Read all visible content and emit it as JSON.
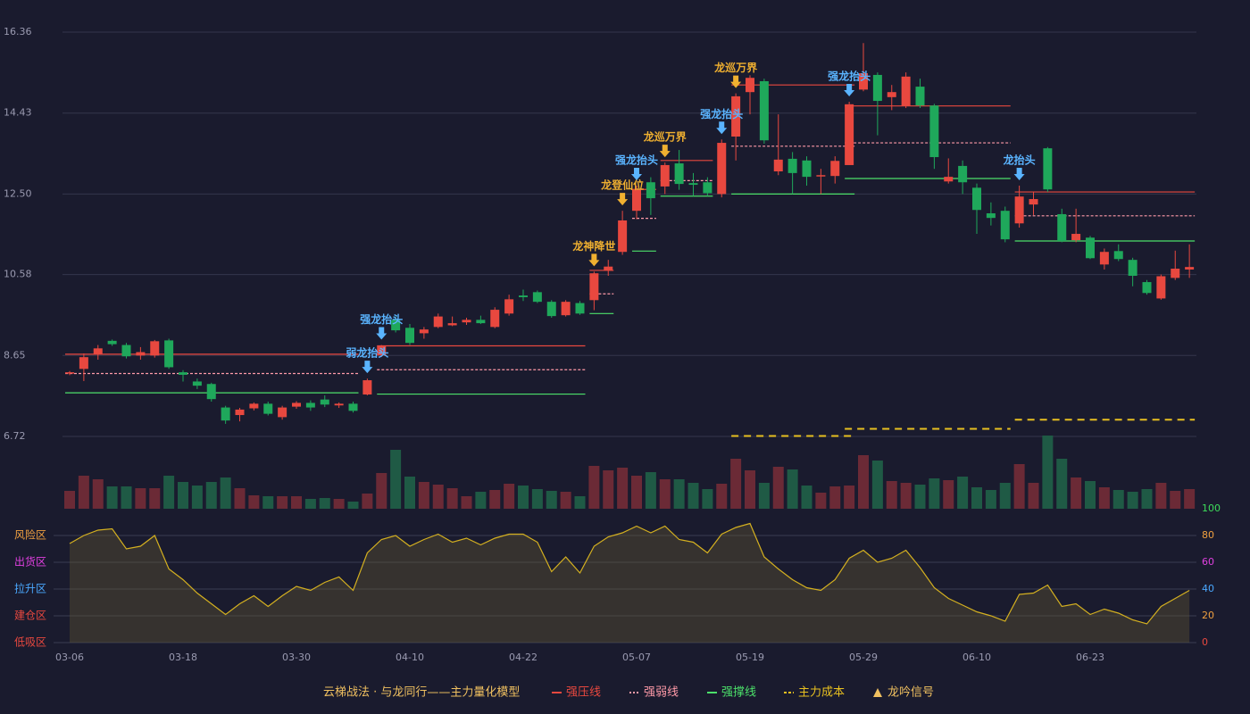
{
  "chart_data": {
    "type": "candlestick",
    "categories": [
      "03-06",
      null,
      null,
      null,
      null,
      null,
      null,
      null,
      "03-18",
      null,
      null,
      null,
      null,
      null,
      null,
      null,
      "03-30",
      null,
      null,
      null,
      null,
      null,
      null,
      null,
      "04-10",
      null,
      null,
      null,
      null,
      null,
      null,
      null,
      "04-22",
      null,
      null,
      null,
      null,
      null,
      null,
      null,
      "05-07",
      null,
      null,
      null,
      null,
      null,
      null,
      null,
      "05-19",
      null,
      null,
      null,
      null,
      null,
      null,
      null,
      "05-29",
      null,
      null,
      null,
      null,
      null,
      null,
      null,
      "06-10",
      null,
      null,
      null,
      null,
      null,
      null,
      null,
      "06-23",
      null,
      null,
      null,
      null,
      null,
      null,
      null
    ],
    "open": [
      8.22,
      8.33,
      8.67,
      9.0,
      8.9,
      8.65,
      8.65,
      9.01,
      8.25,
      8.03,
      7.97,
      7.41,
      7.23,
      7.39,
      7.5,
      7.18,
      7.43,
      7.52,
      7.6,
      7.46,
      7.5,
      7.72,
      8.65,
      9.5,
      9.31,
      9.18,
      9.33,
      9.37,
      9.44,
      9.5,
      9.33,
      9.65,
      10.08,
      10.16,
      9.93,
      9.61,
      9.9,
      9.97,
      10.68,
      11.12,
      12.1,
      12.78,
      12.68,
      13.23,
      12.76,
      12.78,
      12.5,
      13.87,
      14.93,
      15.19,
      13.04,
      13.34,
      13.3,
      12.93,
      12.93,
      13.19,
      14.99,
      15.34,
      14.81,
      14.6,
      15.06,
      14.61,
      12.8,
      13.17,
      12.65,
      12.04,
      12.1,
      11.8,
      12.25,
      13.59,
      12.02,
      11.4,
      11.46,
      10.82,
      11.14,
      10.93,
      10.4,
      10.01,
      10.5,
      10.7
    ],
    "high": [
      8.28,
      8.7,
      8.9,
      9.03,
      8.95,
      8.85,
      9.02,
      9.05,
      8.3,
      8.1,
      8.0,
      7.45,
      7.4,
      7.53,
      7.55,
      7.45,
      7.56,
      7.58,
      7.7,
      7.53,
      7.55,
      8.1,
      8.9,
      9.58,
      9.4,
      9.33,
      9.65,
      9.58,
      9.55,
      9.6,
      9.8,
      10.1,
      10.22,
      10.2,
      9.97,
      9.97,
      9.95,
      10.65,
      10.93,
      12.1,
      12.7,
      12.9,
      13.25,
      13.55,
      13.0,
      12.9,
      13.8,
      14.9,
      15.33,
      15.25,
      14.4,
      13.5,
      13.4,
      13.1,
      13.4,
      14.7,
      16.1,
      15.4,
      15.1,
      15.4,
      15.25,
      14.65,
      13.35,
      13.3,
      12.75,
      12.3,
      12.2,
      12.7,
      12.55,
      13.62,
      12.15,
      12.15,
      11.5,
      11.2,
      11.3,
      10.98,
      10.45,
      10.58,
      11.15,
      11.3
    ],
    "low": [
      8.18,
      8.04,
      8.55,
      8.88,
      8.58,
      8.55,
      8.6,
      8.33,
      8.03,
      7.85,
      7.55,
      7.02,
      7.08,
      7.34,
      7.22,
      7.12,
      7.38,
      7.33,
      7.42,
      7.4,
      7.29,
      7.7,
      8.62,
      9.2,
      8.9,
      9.05,
      9.3,
      9.35,
      9.38,
      9.4,
      9.3,
      9.6,
      9.95,
      9.9,
      9.55,
      9.58,
      9.62,
      9.73,
      10.55,
      11.05,
      11.9,
      12.0,
      12.5,
      12.6,
      12.45,
      12.45,
      12.42,
      13.3,
      14.4,
      13.7,
      12.95,
      12.5,
      12.7,
      12.5,
      12.75,
      13.19,
      14.95,
      13.9,
      14.5,
      14.55,
      14.55,
      13.1,
      12.75,
      12.5,
      11.55,
      11.75,
      11.35,
      11.7,
      12.0,
      12.55,
      11.35,
      11.35,
      10.95,
      10.7,
      10.9,
      10.3,
      10.1,
      9.98,
      10.45,
      10.5
    ],
    "close": [
      8.25,
      8.61,
      8.82,
      8.92,
      8.63,
      8.73,
      8.99,
      8.37,
      8.19,
      7.93,
      7.61,
      7.1,
      7.36,
      7.5,
      7.26,
      7.41,
      7.52,
      7.41,
      7.48,
      7.5,
      7.33,
      8.06,
      8.87,
      9.25,
      8.95,
      9.27,
      9.58,
      9.42,
      9.5,
      9.42,
      9.74,
      9.99,
      10.04,
      9.93,
      9.59,
      9.93,
      9.65,
      10.61,
      10.77,
      11.87,
      12.61,
      12.4,
      13.19,
      12.74,
      12.72,
      12.52,
      13.72,
      14.83,
      15.27,
      13.78,
      13.32,
      13.0,
      12.91,
      12.95,
      13.29,
      14.64,
      15.38,
      14.72,
      14.93,
      15.3,
      14.61,
      13.38,
      12.91,
      12.78,
      12.12,
      11.93,
      11.42,
      12.44,
      12.38,
      12.61,
      11.38,
      11.55,
      10.97,
      11.12,
      10.95,
      10.55,
      10.14,
      10.54,
      10.72,
      10.76
    ],
    "up_color": "#e8483f",
    "down_color": "#1fa85b",
    "ylim": [
      6.72,
      16.36
    ],
    "yticks": [
      6.72,
      8.65,
      10.58,
      {
        "value": 12.5,
        "label": "12.50"
      },
      14.43,
      16.36
    ],
    "grid": true,
    "volume": {
      "values": [
        20,
        37,
        33,
        25,
        25,
        23,
        23,
        37,
        30,
        26,
        30,
        35,
        23,
        15,
        14,
        14,
        14,
        11,
        12,
        11,
        8,
        17,
        40,
        66,
        36,
        30,
        27,
        23,
        14,
        19,
        21,
        28,
        26,
        22,
        20,
        19,
        14,
        48,
        43,
        46,
        37,
        41,
        33,
        33,
        29,
        22,
        28,
        56,
        43,
        29,
        47,
        44,
        26,
        18,
        25,
        26,
        60,
        54,
        31,
        29,
        27,
        34,
        32,
        36,
        24,
        21,
        29,
        50,
        29,
        82,
        56,
        35,
        31,
        24,
        21,
        19,
        22,
        29,
        20,
        22
      ],
      "up_color": "#6b2a36",
      "down_color": "#1f5a45"
    },
    "oscillator": {
      "values": [
        74,
        80,
        84,
        85,
        70,
        72,
        80,
        55,
        47,
        37,
        29,
        21,
        29,
        35,
        27,
        35,
        42,
        39,
        45,
        49,
        39,
        67,
        77,
        80,
        72,
        77,
        81,
        75,
        78,
        73,
        78,
        81,
        81,
        75,
        53,
        64,
        52,
        72,
        79,
        82,
        87,
        82,
        87,
        77,
        75,
        67,
        81,
        86,
        89,
        64,
        55,
        47,
        41,
        39,
        47,
        63,
        69,
        60,
        63,
        69,
        56,
        41,
        33,
        28,
        23,
        20,
        16,
        36,
        37,
        43,
        27,
        29,
        21,
        25,
        22,
        17,
        14,
        27,
        33,
        39
      ],
      "color": "#d4b020",
      "ylim": [
        0,
        100
      ],
      "yticks": [
        0,
        20,
        40,
        60,
        80,
        100
      ],
      "ytick_colors": [
        "#e8483f",
        "#f0a040",
        "#4aa8ff",
        "#e040e0",
        "#f0a040",
        "#3ddc5a"
      ],
      "zones": [
        {
          "value": 80,
          "label": "风险区",
          "color": "#f0a040"
        },
        {
          "value": 60,
          "label": "出货区",
          "color": "#e040e0"
        },
        {
          "value": 40,
          "label": "拉升区",
          "color": "#4aa8ff"
        },
        {
          "value": 20,
          "label": "建仓区",
          "color": "#e8483f"
        },
        {
          "value": 0,
          "label": "低吸区",
          "color": "#e8483f"
        }
      ]
    },
    "levels": [
      {
        "start": 0,
        "end": 20,
        "resistance": 8.68,
        "pivot": 8.22,
        "support": 7.76,
        "cost": null
      },
      {
        "start": 22,
        "end": 36,
        "resistance": 8.88,
        "pivot": 8.31,
        "support": 7.73,
        "cost": null
      },
      {
        "start": 37,
        "end": 38,
        "resistance": 10.68,
        "pivot": 10.12,
        "support": 9.65,
        "cost": null
      },
      {
        "start": 40,
        "end": 41,
        "resistance": 12.61,
        "pivot": 11.92,
        "support": 11.14,
        "cost": null
      },
      {
        "start": 42,
        "end": 45,
        "resistance": 13.3,
        "pivot": 12.82,
        "support": 12.45,
        "cost": null
      },
      {
        "start": 47,
        "end": 55,
        "resistance": 15.1,
        "pivot": 13.64,
        "support": 12.5,
        "cost": 6.73
      },
      {
        "start": 55,
        "end": 66,
        "resistance": 14.6,
        "pivot": 13.72,
        "support": 12.87,
        "cost": 6.9
      },
      {
        "start": 67,
        "end": 79,
        "resistance": 12.55,
        "pivot": 11.98,
        "support": 11.38,
        "cost": 7.12
      }
    ],
    "level_styles": {
      "resistance": "#e8483f",
      "pivot": "#ff9aa8",
      "support": "#4ce06a",
      "cost": "#e8c020"
    },
    "signals": [
      {
        "index": 21,
        "label": "弱龙抬头",
        "color": "#5ab4ff"
      },
      {
        "index": 22,
        "label": "强龙抬头",
        "color": "#5ab4ff"
      },
      {
        "index": 37,
        "label": "龙神降世",
        "color": "#f0b030"
      },
      {
        "index": 39,
        "label": "龙登仙位",
        "color": "#f0b030"
      },
      {
        "index": 40,
        "label": "强龙抬头",
        "color": "#5ab4ff"
      },
      {
        "index": 42,
        "label": "龙巡万界",
        "color": "#f0b030"
      },
      {
        "index": 46,
        "label": "强龙抬头",
        "color": "#5ab4ff"
      },
      {
        "index": 47,
        "label": "龙巡万界",
        "color": "#f0b030"
      },
      {
        "index": 55,
        "label": "强龙抬头",
        "color": "#5ab4ff"
      },
      {
        "index": 67,
        "label": "龙抬头",
        "color": "#5ab4ff"
      }
    ],
    "legend": {
      "title": "云梯战法 · 与龙同行——主力量化模型",
      "title_color": "#f0c060",
      "items": [
        {
          "name": "强压线",
          "color": "#e8483f"
        },
        {
          "name": "强弱线",
          "color": "#ff9aa8"
        },
        {
          "name": "强撑线",
          "color": "#4ce06a"
        },
        {
          "name": "主力成本",
          "color": "#e8c020"
        },
        {
          "name": "龙吟信号",
          "color": "#f0c060"
        }
      ]
    }
  }
}
